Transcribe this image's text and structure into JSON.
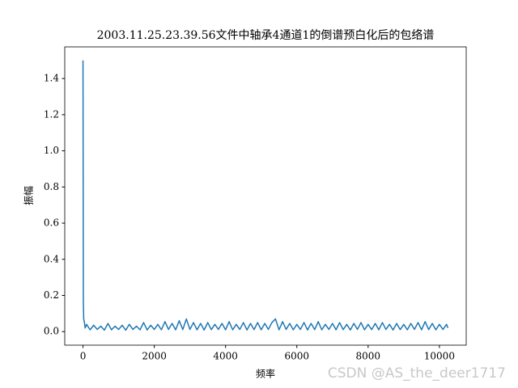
{
  "chart_data": {
    "type": "line",
    "title": "2003.11.25.23.39.56文件中轴承4通道1的倒谱预白化后的包络谱",
    "x_label": "频率",
    "y_label": "振幅",
    "x": [
      0,
      10,
      20,
      40,
      60,
      100,
      200,
      300,
      400,
      500,
      600,
      700,
      800,
      900,
      1000,
      1100,
      1200,
      1300,
      1400,
      1500,
      1600,
      1700,
      1800,
      1900,
      2000,
      2100,
      2200,
      2300,
      2400,
      2500,
      2600,
      2700,
      2800,
      2900,
      3000,
      3100,
      3200,
      3300,
      3400,
      3500,
      3600,
      3700,
      3800,
      3900,
      4000,
      4100,
      4200,
      4300,
      4400,
      4500,
      4600,
      4700,
      4800,
      4900,
      5000,
      5100,
      5200,
      5300,
      5400,
      5500,
      5600,
      5700,
      5800,
      5900,
      6000,
      6100,
      6200,
      6300,
      6400,
      6500,
      6600,
      6700,
      6800,
      6900,
      7000,
      7100,
      7200,
      7300,
      7400,
      7500,
      7600,
      7700,
      7800,
      7900,
      8000,
      8100,
      8200,
      8300,
      8400,
      8500,
      8600,
      8700,
      8800,
      8900,
      9000,
      9100,
      9200,
      9300,
      9400,
      9500,
      9600,
      9700,
      9800,
      9900,
      10000,
      10100,
      10200,
      10240
    ],
    "series": [
      {
        "color": "#1f77b4",
        "values": [
          1.5,
          0.16,
          0.07,
          0.05,
          0.02,
          0.04,
          0.01,
          0.035,
          0.012,
          0.03,
          0.008,
          0.045,
          0.01,
          0.03,
          0.012,
          0.035,
          0.008,
          0.04,
          0.012,
          0.03,
          0.01,
          0.05,
          0.009,
          0.035,
          0.012,
          0.04,
          0.01,
          0.055,
          0.012,
          0.045,
          0.01,
          0.06,
          0.011,
          0.07,
          0.012,
          0.05,
          0.01,
          0.045,
          0.009,
          0.05,
          0.011,
          0.04,
          0.012,
          0.045,
          0.01,
          0.055,
          0.01,
          0.04,
          0.012,
          0.05,
          0.009,
          0.045,
          0.011,
          0.05,
          0.01,
          0.045,
          0.012,
          0.05,
          0.07,
          0.01,
          0.055,
          0.012,
          0.045,
          0.01,
          0.04,
          0.012,
          0.05,
          0.009,
          0.045,
          0.011,
          0.055,
          0.01,
          0.04,
          0.012,
          0.045,
          0.01,
          0.05,
          0.011,
          0.04,
          0.009,
          0.045,
          0.012,
          0.05,
          0.01,
          0.04,
          0.011,
          0.045,
          0.01,
          0.05,
          0.012,
          0.04,
          0.009,
          0.045,
          0.011,
          0.04,
          0.01,
          0.045,
          0.012,
          0.05,
          0.01,
          0.055,
          0.011,
          0.045,
          0.01,
          0.04,
          0.012,
          0.04,
          0.02
        ]
      }
    ],
    "xlim": [
      -512,
      10752
    ],
    "ylim": [
      -0.075,
      1.575
    ],
    "xticks": [
      0,
      2000,
      4000,
      6000,
      8000,
      10000
    ],
    "yticks": [
      {
        "value": 0,
        "label": "0.0"
      },
      0.2,
      0.4,
      0.6,
      0.8,
      {
        "value": 1,
        "label": "1.0"
      },
      1.2,
      1.4
    ]
  },
  "watermark": "CSDN @AS_the_deer1717"
}
